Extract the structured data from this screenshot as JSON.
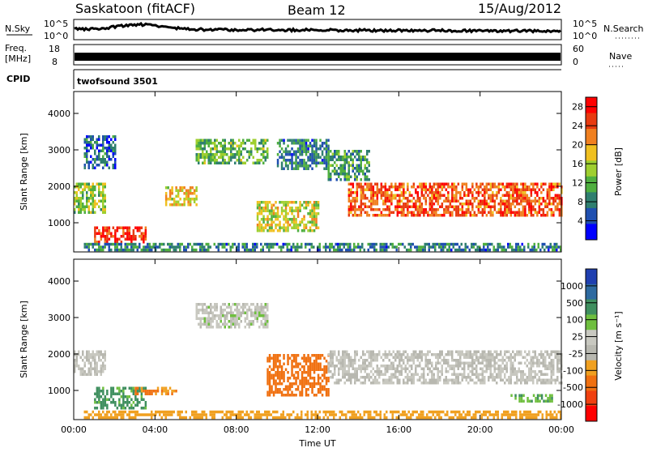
{
  "header": {
    "station": "Saskatoon (fitACF)",
    "beam": "Beam 12",
    "date": "15/Aug/2012"
  },
  "strip_panels": {
    "nsky": {
      "label": "N.Sky",
      "right_label": "N.Search",
      "tick_top": "10^5",
      "tick_bottom": "10^0",
      "right_tick_top": "10^5",
      "right_tick_bottom": "10^0"
    },
    "freq": {
      "label_line1": "Freq.",
      "label_line2": "[MHz]",
      "right_label": "Nave",
      "tick_top": "18",
      "tick_bottom": "8",
      "right_tick_top": "60",
      "right_tick_bottom": "0"
    },
    "cpid": {
      "label": "CPID",
      "program": "twofsound 3501"
    }
  },
  "colors": {
    "power_scale": [
      "#0000ff",
      "#1f4fb0",
      "#2f7f6f",
      "#4faf3f",
      "#9fcf2f",
      "#f0c020",
      "#f08020",
      "#e83a10",
      "#ff0000"
    ],
    "velocity_scale": [
      "#1f3fb0",
      "#2e6aa0",
      "#3f8f5f",
      "#6fbf3f",
      "#c8c8c0",
      "#b8b8b0",
      "#f0a020",
      "#f07010",
      "#f04010",
      "#ff0000"
    ]
  },
  "chart_data": [
    {
      "type": "heatmap",
      "ylabel": "Slant Range [km]",
      "yticks": [
        "1000",
        "2000",
        "3000",
        "4000"
      ],
      "ylim": [
        200,
        4600
      ],
      "xlim": [
        "00:00",
        "00:00"
      ],
      "colorbar": {
        "label": "Power [dB]",
        "ticks": [
          "4",
          "8",
          "12",
          "16",
          "20",
          "24",
          "28"
        ],
        "range": [
          0,
          30
        ]
      },
      "regions": [
        {
          "t": [
            0.0,
            1.5
          ],
          "r": [
            1300,
            2100
          ],
          "v": 14
        },
        {
          "t": [
            1.0,
            3.5
          ],
          "r": [
            500,
            900
          ],
          "v": 26
        },
        {
          "t": [
            0.5,
            2.0
          ],
          "r": [
            2500,
            3400
          ],
          "v": 6
        },
        {
          "t": [
            4.5,
            6.0
          ],
          "r": [
            1500,
            2000
          ],
          "v": 18
        },
        {
          "t": [
            6.0,
            9.5
          ],
          "r": [
            2600,
            3300
          ],
          "v": 12
        },
        {
          "t": [
            9.0,
            12.0
          ],
          "r": [
            800,
            1600
          ],
          "v": 16
        },
        {
          "t": [
            10.0,
            12.5
          ],
          "r": [
            2500,
            3300
          ],
          "v": 8
        },
        {
          "t": [
            13.5,
            24.0
          ],
          "r": [
            1200,
            2100
          ],
          "v": 24
        },
        {
          "t": [
            12.5,
            14.5
          ],
          "r": [
            2200,
            3000
          ],
          "v": 10
        },
        {
          "t": [
            0.5,
            24.0
          ],
          "r": [
            250,
            450
          ],
          "v": 8
        }
      ]
    },
    {
      "type": "heatmap",
      "ylabel": "Slant Range [km]",
      "xlabel": "Time UT",
      "yticks": [
        "1000",
        "2000",
        "3000",
        "4000"
      ],
      "xticks": [
        "00:00",
        "04:00",
        "08:00",
        "12:00",
        "16:00",
        "20:00",
        "00:00"
      ],
      "ylim": [
        200,
        4600
      ],
      "colorbar": {
        "label": "Velocity [m s^-1]",
        "ticks": [
          "1000",
          "500",
          "100",
          "25",
          "-25",
          "-100",
          "-500",
          "-1000"
        ]
      },
      "regions": [
        {
          "t": [
            0.0,
            1.5
          ],
          "r": [
            1400,
            2100
          ],
          "v": 0
        },
        {
          "t": [
            1.0,
            3.5
          ],
          "r": [
            500,
            1100
          ],
          "v": 150
        },
        {
          "t": [
            3.0,
            5.0
          ],
          "r": [
            900,
            1100
          ],
          "v": -120
        },
        {
          "t": [
            6.0,
            9.5
          ],
          "r": [
            2700,
            3400
          ],
          "v": 10
        },
        {
          "t": [
            9.5,
            12.5
          ],
          "r": [
            900,
            2000
          ],
          "v": -200
        },
        {
          "t": [
            12.5,
            24.0
          ],
          "r": [
            1200,
            2100
          ],
          "v": 0
        },
        {
          "t": [
            21.5,
            23.5
          ],
          "r": [
            700,
            900
          ],
          "v": 80
        },
        {
          "t": [
            0.5,
            24.0
          ],
          "r": [
            250,
            450
          ],
          "v": -60
        }
      ]
    }
  ],
  "y_axis_labels": {
    "top": "Slant Range [km]",
    "bottom": "Slant Range [km]"
  },
  "x_axis_label": "Time UT",
  "x_ticks": [
    "00:00",
    "04:00",
    "08:00",
    "12:00",
    "16:00",
    "20:00",
    "00:00"
  ],
  "y_ticks": [
    "1000",
    "2000",
    "3000",
    "4000"
  ],
  "power_ticks": [
    "4",
    "8",
    "12",
    "16",
    "20",
    "24",
    "28"
  ],
  "power_label": "Power [dB]",
  "velocity_ticks": [
    "1000",
    "500",
    "100",
    "25",
    "-25",
    "-100",
    "-500",
    "-1000"
  ],
  "velocity_label": "Velocity [m s⁻¹]"
}
